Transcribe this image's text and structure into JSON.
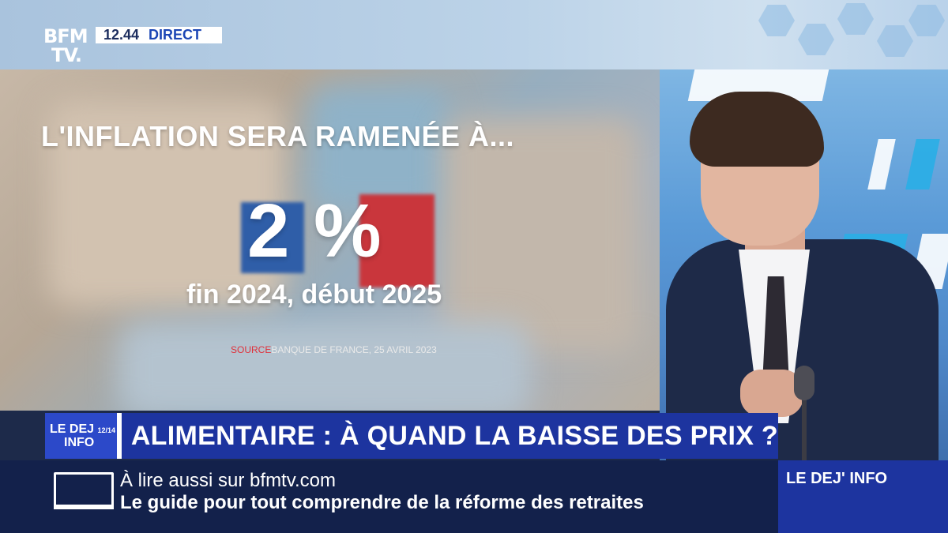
{
  "brand": {
    "logo_line1": "BFM",
    "logo_line2": "TV."
  },
  "status": {
    "time": "12.44",
    "live": "DIRECT"
  },
  "graphic": {
    "title": "L'INFLATION SERA RAMENÉE À...",
    "value": "2 %",
    "period": "fin 2024, début 2025",
    "source_label": "SOURCE",
    "source_text": "BANQUE DE FRANCE, 25 AVRIL 2023"
  },
  "show": {
    "name_line1": "LE DEJ",
    "name_badge": "12/14",
    "name_line2": "INFO"
  },
  "headline": {
    "text": "ALIMENTAIRE : À QUAND LA BAISSE DES PRIX ?"
  },
  "ticker": {
    "line1": "À lire aussi sur bfmtv.com",
    "line2": "Le guide pour tout comprendre de la réforme des retraites"
  },
  "program_badge": {
    "text": "LE DEJ' INFO"
  },
  "colors": {
    "banner_blue": "#1d349f",
    "ticker_navy": "#13214b",
    "live_blue": "#1c46b5",
    "source_red": "#e0303a"
  }
}
